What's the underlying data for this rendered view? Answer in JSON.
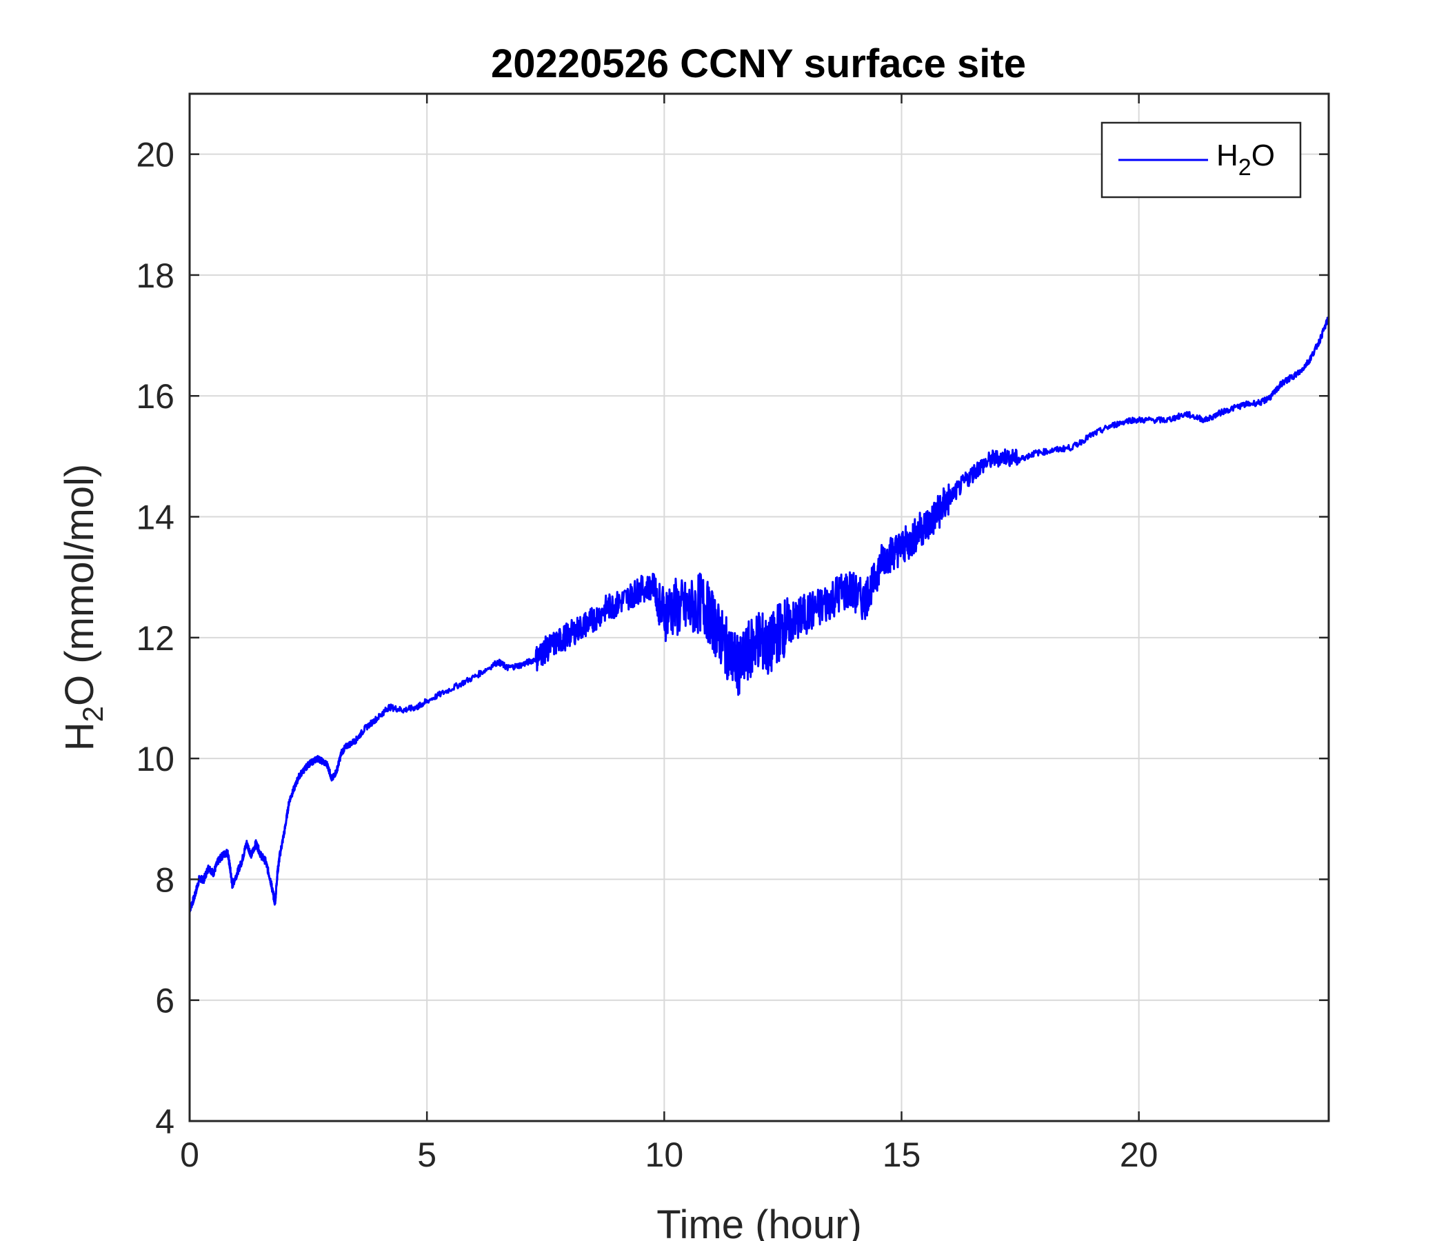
{
  "chart_data": {
    "type": "line",
    "title": "20220526 CCNY surface site",
    "xlabel": "Time (hour)",
    "ylabel": {
      "base": "H",
      "sub": "2",
      "rest": "O (mmol/mol)"
    },
    "xlim": [
      0,
      24
    ],
    "ylim": [
      4,
      21
    ],
    "xticks": [
      0,
      5,
      10,
      15,
      20
    ],
    "yticks": [
      4,
      6,
      8,
      10,
      12,
      14,
      16,
      18,
      20
    ],
    "grid": true,
    "legend_position": "top-right",
    "series": [
      {
        "name": {
          "base": "H",
          "sub": "2",
          "rest": "O"
        },
        "color": "#0000ff",
        "points": [
          [
            0.0,
            7.5
          ],
          [
            0.1,
            7.7
          ],
          [
            0.2,
            8.0
          ],
          [
            0.3,
            8.0
          ],
          [
            0.4,
            8.2
          ],
          [
            0.5,
            8.1
          ],
          [
            0.6,
            8.3
          ],
          [
            0.7,
            8.4
          ],
          [
            0.8,
            8.45
          ],
          [
            0.85,
            8.2
          ],
          [
            0.9,
            7.9
          ],
          [
            1.0,
            8.1
          ],
          [
            1.1,
            8.3
          ],
          [
            1.2,
            8.6
          ],
          [
            1.3,
            8.4
          ],
          [
            1.4,
            8.6
          ],
          [
            1.5,
            8.4
          ],
          [
            1.6,
            8.3
          ],
          [
            1.7,
            8.0
          ],
          [
            1.75,
            7.8
          ],
          [
            1.8,
            7.6
          ],
          [
            1.85,
            8.1
          ],
          [
            1.9,
            8.4
          ],
          [
            2.0,
            8.8
          ],
          [
            2.1,
            9.3
          ],
          [
            2.2,
            9.5
          ],
          [
            2.3,
            9.7
          ],
          [
            2.4,
            9.8
          ],
          [
            2.5,
            9.9
          ],
          [
            2.6,
            9.95
          ],
          [
            2.7,
            10.0
          ],
          [
            2.8,
            9.95
          ],
          [
            2.9,
            9.9
          ],
          [
            3.0,
            9.65
          ],
          [
            3.1,
            9.8
          ],
          [
            3.2,
            10.1
          ],
          [
            3.3,
            10.2
          ],
          [
            3.5,
            10.3
          ],
          [
            3.7,
            10.5
          ],
          [
            4.0,
            10.7
          ],
          [
            4.2,
            10.85
          ],
          [
            4.5,
            10.8
          ],
          [
            4.8,
            10.85
          ],
          [
            5.0,
            10.95
          ],
          [
            5.5,
            11.15
          ],
          [
            6.0,
            11.35
          ],
          [
            6.5,
            11.6
          ],
          [
            6.7,
            11.5
          ],
          [
            7.0,
            11.55
          ],
          [
            7.3,
            11.65
          ],
          [
            7.5,
            11.8
          ],
          [
            7.8,
            11.95
          ],
          [
            8.0,
            12.05
          ],
          [
            8.3,
            12.2
          ],
          [
            8.5,
            12.3
          ],
          [
            8.8,
            12.5
          ],
          [
            9.0,
            12.55
          ],
          [
            9.3,
            12.7
          ],
          [
            9.5,
            12.8
          ],
          [
            9.8,
            12.85
          ],
          [
            9.9,
            12.4
          ],
          [
            10.2,
            12.5
          ],
          [
            10.5,
            12.45
          ],
          [
            10.8,
            12.6
          ],
          [
            11.0,
            12.3
          ],
          [
            11.2,
            12.0
          ],
          [
            11.4,
            11.7
          ],
          [
            11.6,
            11.5
          ],
          [
            11.8,
            11.8
          ],
          [
            12.0,
            12.0
          ],
          [
            12.2,
            11.8
          ],
          [
            12.4,
            12.1
          ],
          [
            12.6,
            12.2
          ],
          [
            12.8,
            12.3
          ],
          [
            13.0,
            12.4
          ],
          [
            13.3,
            12.5
          ],
          [
            13.6,
            12.7
          ],
          [
            13.9,
            12.8
          ],
          [
            14.2,
            12.6
          ],
          [
            14.4,
            12.9
          ],
          [
            14.6,
            13.3
          ],
          [
            14.8,
            13.4
          ],
          [
            15.0,
            13.5
          ],
          [
            15.2,
            13.6
          ],
          [
            15.4,
            13.8
          ],
          [
            15.6,
            13.9
          ],
          [
            15.8,
            14.1
          ],
          [
            16.0,
            14.3
          ],
          [
            16.3,
            14.55
          ],
          [
            16.6,
            14.8
          ],
          [
            16.9,
            14.95
          ],
          [
            17.2,
            15.0
          ],
          [
            17.5,
            14.95
          ],
          [
            17.8,
            15.05
          ],
          [
            18.2,
            15.1
          ],
          [
            18.6,
            15.15
          ],
          [
            19.0,
            15.35
          ],
          [
            19.4,
            15.5
          ],
          [
            19.8,
            15.6
          ],
          [
            20.2,
            15.6
          ],
          [
            20.6,
            15.6
          ],
          [
            21.0,
            15.7
          ],
          [
            21.4,
            15.6
          ],
          [
            21.8,
            15.75
          ],
          [
            22.2,
            15.85
          ],
          [
            22.6,
            15.9
          ],
          [
            22.8,
            16.0
          ],
          [
            23.0,
            16.2
          ],
          [
            23.2,
            16.3
          ],
          [
            23.4,
            16.4
          ],
          [
            23.6,
            16.6
          ],
          [
            23.8,
            16.9
          ],
          [
            24.0,
            17.3
          ]
        ]
      }
    ]
  }
}
